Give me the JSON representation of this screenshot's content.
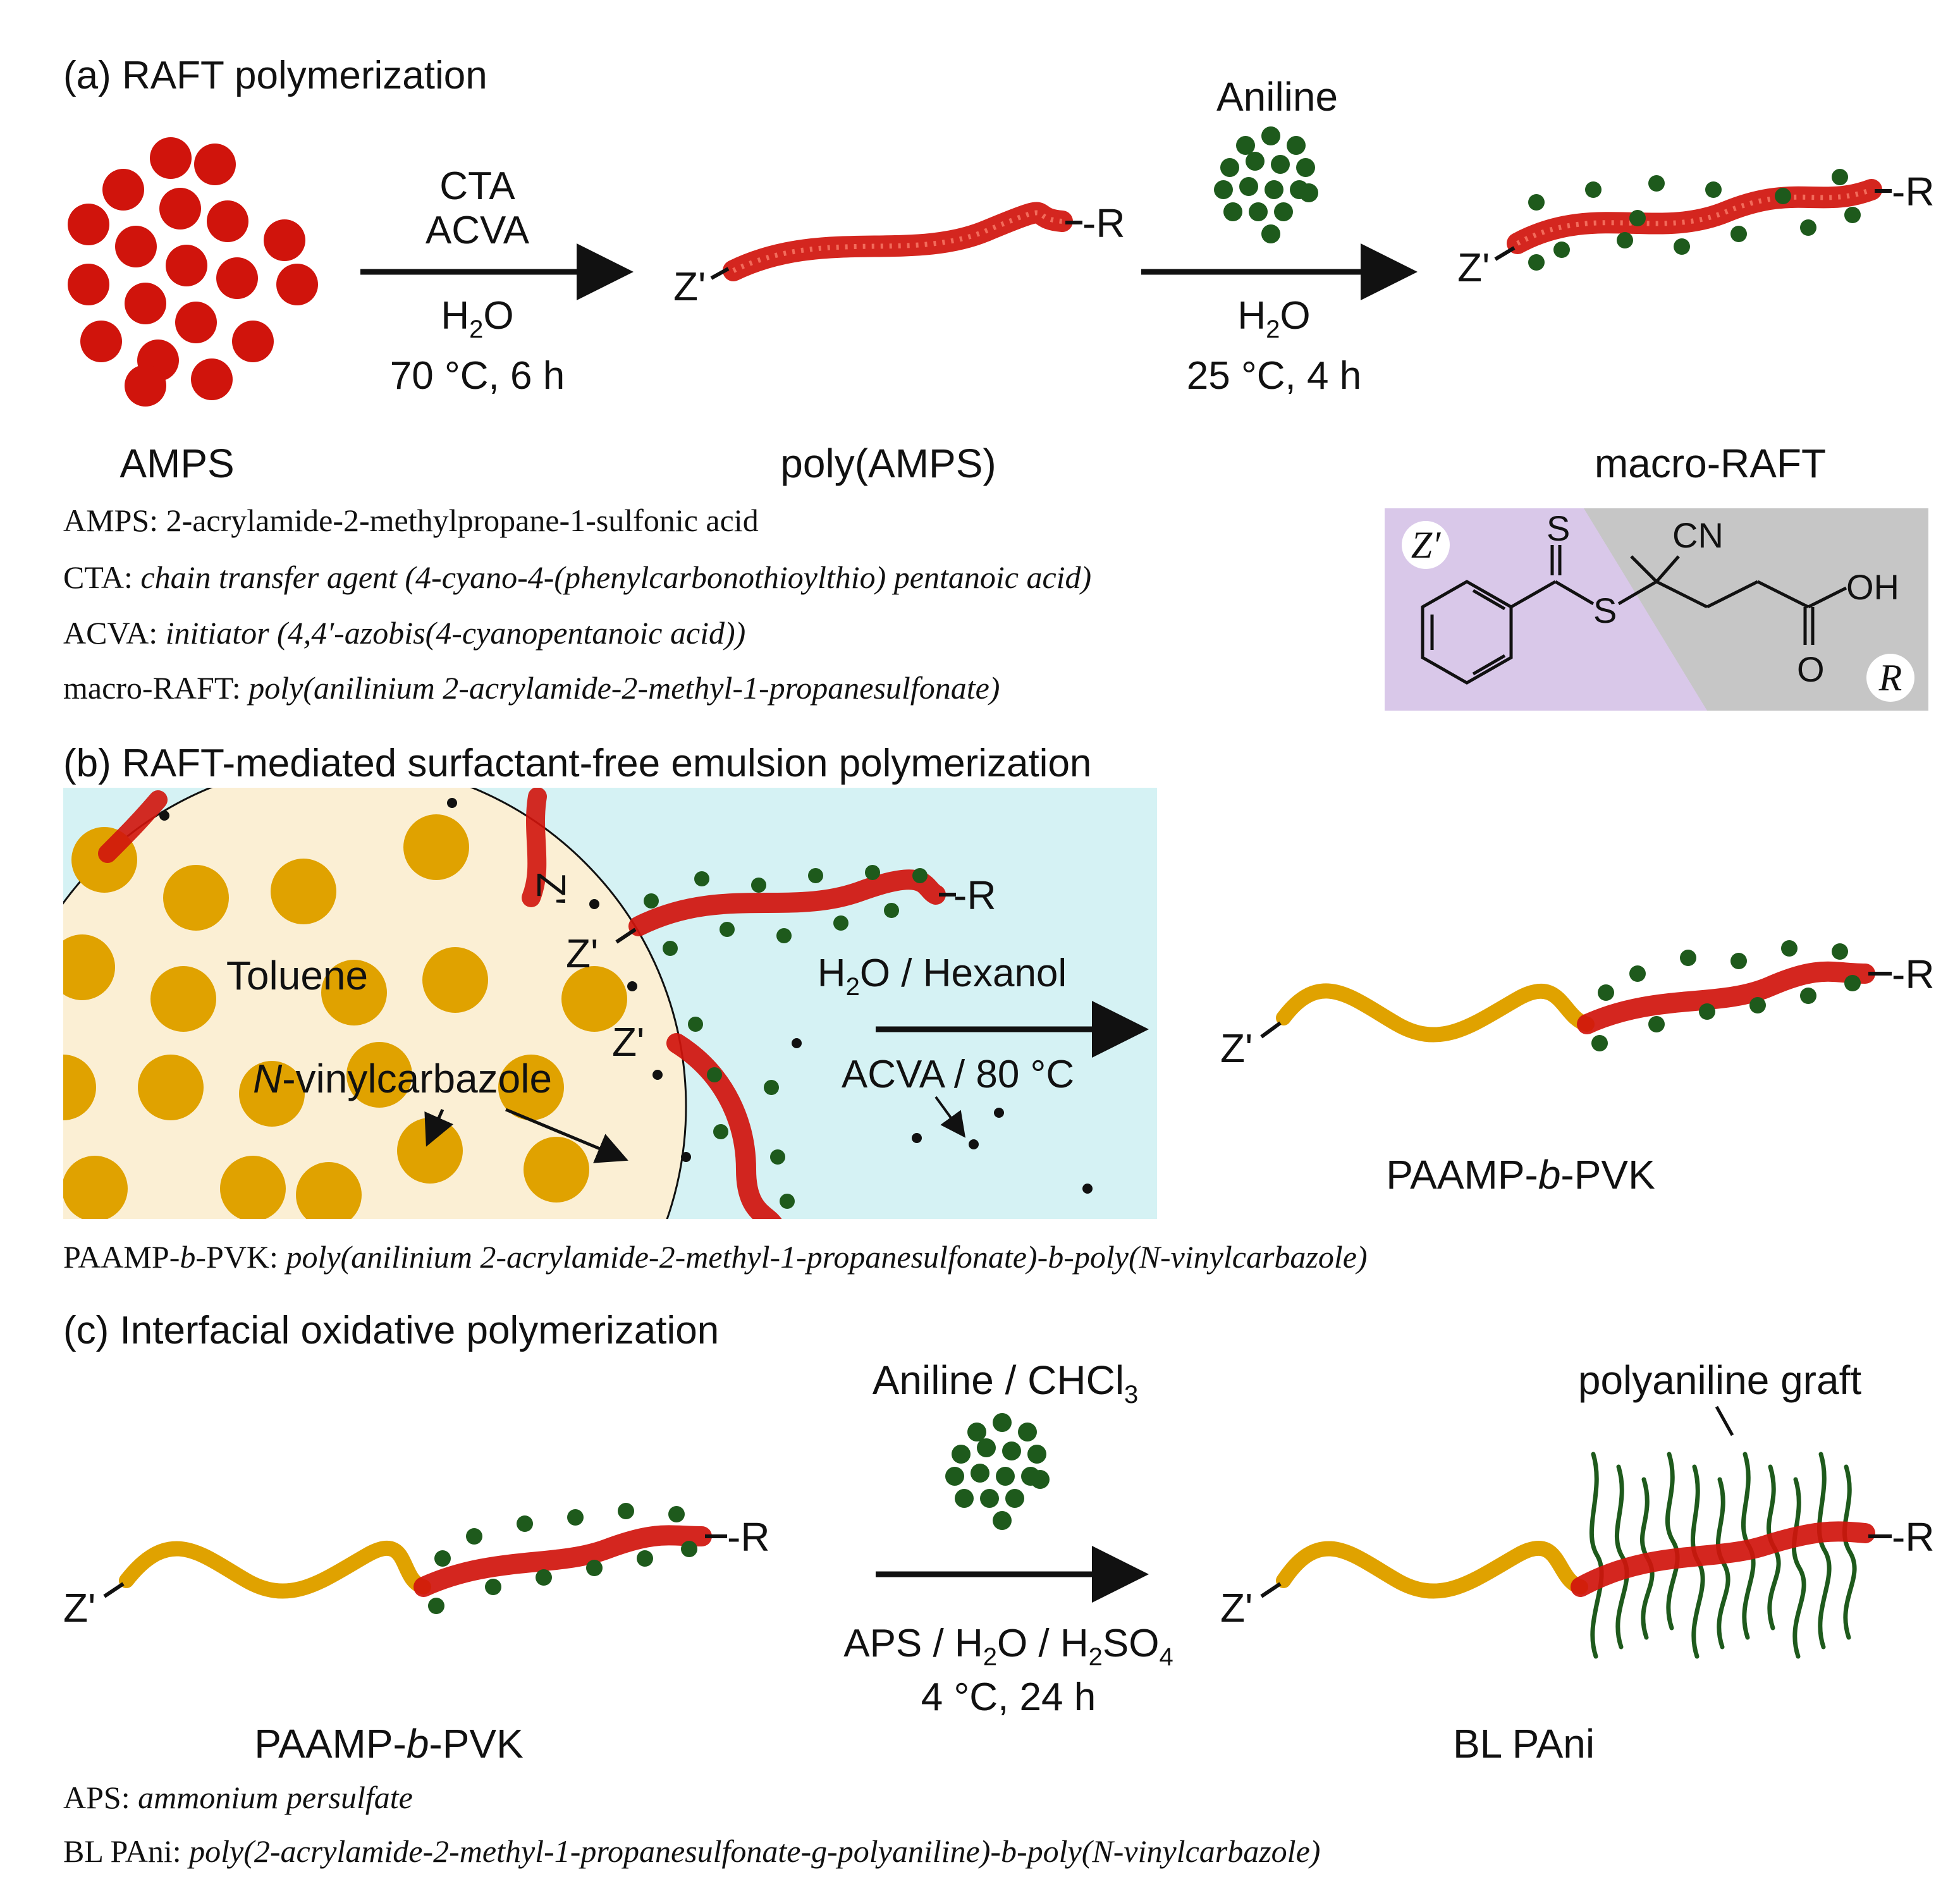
{
  "colors": {
    "monomer_red": "#d0140c",
    "aniline_green": "#1e5a1c",
    "pvk_gold": "#e0a200",
    "toluene_bg": "#fbefd4",
    "water_bg": "#d5f2f4",
    "zprime_region": "#d9c8e9",
    "r_region": "#c6c6c6"
  },
  "panel_a": {
    "heading": "(a) RAFT polymerization",
    "arrow1": {
      "top1": "CTA",
      "top2": "ACVA",
      "bottom_pre": "H",
      "bottom_sub": "2",
      "bottom_post": "O",
      "bottom2": "70 °C, 6 h"
    },
    "aniline_label": "Aniline",
    "arrow2": {
      "bottom_pre": "H",
      "bottom_sub": "2",
      "bottom_post": "O",
      "bottom2": "25 °C, 4 h"
    },
    "end_z": "Z'",
    "end_r": "-R",
    "labels": {
      "amps": "AMPS",
      "poly": "poly(AMPS)",
      "macro": "macro-RAFT"
    },
    "notes": [
      {
        "abbr": "AMPS: ",
        "desc": "2-acrylamide-2-methylpropane-1-sulfonic acid",
        "italic": false
      },
      {
        "abbr": "CTA: ",
        "desc": "chain transfer agent (4-cyano-4-(phenylcarbonothioylthio) pentanoic acid)",
        "italic": true
      },
      {
        "abbr": "ACVA: ",
        "desc": "initiator (4,4′-azobis(4-cyanopentanoic acid))",
        "italic": true
      },
      {
        "abbr": "macro-RAFT: ",
        "desc": "poly(anilinium 2-acrylamide-2-methyl-1-propanesulfonate)",
        "italic": true
      }
    ],
    "structure": {
      "z_label": "Z′",
      "r_label": "R",
      "s_top": "S",
      "s_mid": "S",
      "cn": "CN",
      "oh": "OH",
      "o": "O"
    }
  },
  "panel_b": {
    "heading": "(b) RAFT-mediated surfactant-free emulsion polymerization",
    "toluene": "Toluene",
    "nvc_italic": "N",
    "nvc_rest": "-vinylcarbazole",
    "condition_pre": "H",
    "condition_sub": "2",
    "condition_post": "O / Hexanol",
    "condition2": "ACVA / 80 °C",
    "product_pre": "PAAMP-",
    "product_italic": "b",
    "product_post": "-PVK",
    "note_abbr_pre": "PAAMP-",
    "note_abbr_italic": "b",
    "note_abbr_post": "-PVK: ",
    "note_desc": "poly(anilinium 2-acrylamide-2-methyl-1-propanesulfonate)-b-poly(N-vinylcarbazole)"
  },
  "panel_c": {
    "heading": "(c) Interfacial oxidative polymerization",
    "reagent_pre": "Aniline / CHCl",
    "reagent_sub": "3",
    "cond_aps": "APS / H",
    "cond_sub1": "2",
    "cond_mid": "O / H",
    "cond_sub2": "2",
    "cond_so": "SO",
    "cond_sub3": "4",
    "cond2": "4 °C, 24 h",
    "graft_label": "polyaniline graft",
    "left_pre": "PAAMP-",
    "left_italic": "b",
    "left_post": "-PVK",
    "right_label": "BL PAni",
    "notes": [
      {
        "abbr": "APS: ",
        "desc": "ammonium persulfate"
      },
      {
        "abbr": "BL PAni: ",
        "desc": "poly(2-acrylamide-2-methyl-1-propanesulfonate-g-polyaniline)-b-poly(N-vinylcarbazole)"
      }
    ]
  }
}
